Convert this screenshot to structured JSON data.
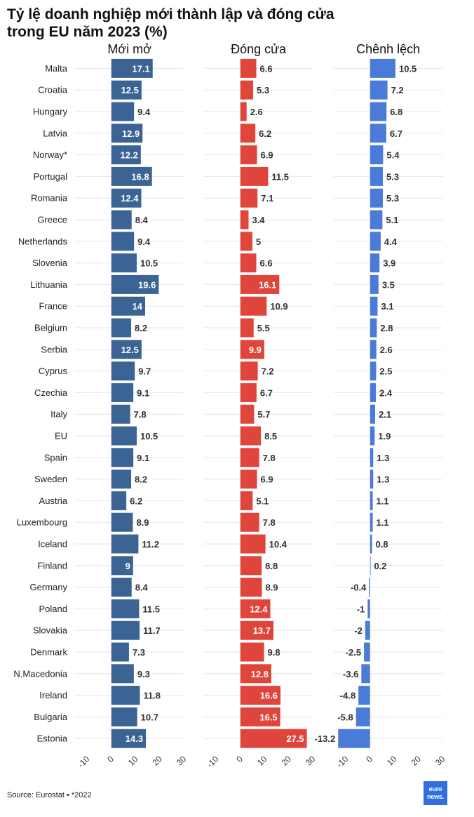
{
  "title_line1": "Tỷ lệ doanh nghiệp mới thành lập và đóng cửa",
  "title_line2": "trong EU năm 2023 (%)",
  "source": "Source: Eurostat • *2022",
  "logo": {
    "line1": "euro",
    "line2": "news."
  },
  "colors": {
    "opened": "#3b6494",
    "closed": "#e0453b",
    "difference": "#4a7bd8",
    "grid": "#e6e6e6"
  },
  "chart_data": {
    "type": "bar",
    "orientation": "horizontal",
    "categories": [
      "Malta",
      "Croatia",
      "Hungary",
      "Latvia",
      "Norway*",
      "Portugal",
      "Romania",
      "Greece",
      "Netherlands",
      "Slovenia",
      "Lithuania",
      "France",
      "Belgium",
      "Serbia",
      "Cyprus",
      "Czechia",
      "Italy",
      "EU",
      "Spain",
      "Sweden",
      "Austria",
      "Luxembourg",
      "Iceland",
      "Finland",
      "Germany",
      "Poland",
      "Slovakia",
      "Denmark",
      "N.Macedonia",
      "Ireland",
      "Bulgaria",
      "Estonia"
    ],
    "panels": [
      {
        "name": "Mới mở",
        "color": "#3b6494",
        "values": [
          17.1,
          12.5,
          9.4,
          12.9,
          12.2,
          16.8,
          12.4,
          8.4,
          9.4,
          10.5,
          19.6,
          14,
          8.2,
          12.5,
          9.7,
          9.1,
          7.8,
          10.5,
          9.1,
          8.2,
          6.2,
          8.9,
          11.2,
          9,
          8.4,
          11.5,
          11.7,
          7.3,
          9.3,
          11.8,
          10.7,
          14.3
        ]
      },
      {
        "name": "Đóng cửa",
        "color": "#e0453b",
        "values": [
          6.6,
          5.3,
          2.6,
          6.2,
          6.9,
          11.5,
          7.1,
          3.4,
          5,
          6.6,
          16.1,
          10.9,
          5.5,
          9.9,
          7.2,
          6.7,
          5.7,
          8.5,
          7.8,
          6.9,
          5.1,
          7.8,
          10.4,
          8.8,
          8.9,
          12.4,
          13.7,
          9.8,
          12.8,
          16.6,
          16.5,
          27.5
        ]
      },
      {
        "name": "Chênh lệch",
        "color": "#4a7bd8",
        "values": [
          10.5,
          7.2,
          6.8,
          6.7,
          5.4,
          5.3,
          5.3,
          5.1,
          4.4,
          3.9,
          3.5,
          3.1,
          2.8,
          2.6,
          2.5,
          2.4,
          2.1,
          1.9,
          1.3,
          1.3,
          1.1,
          1.1,
          0.8,
          0.2,
          -0.4,
          -1,
          -2,
          -2.5,
          -3.6,
          -4.8,
          -5.8,
          -13.2
        ]
      }
    ],
    "xlim": [
      -15,
      30
    ],
    "xticks": [
      -10,
      0,
      10,
      20,
      30
    ],
    "grid": true
  }
}
